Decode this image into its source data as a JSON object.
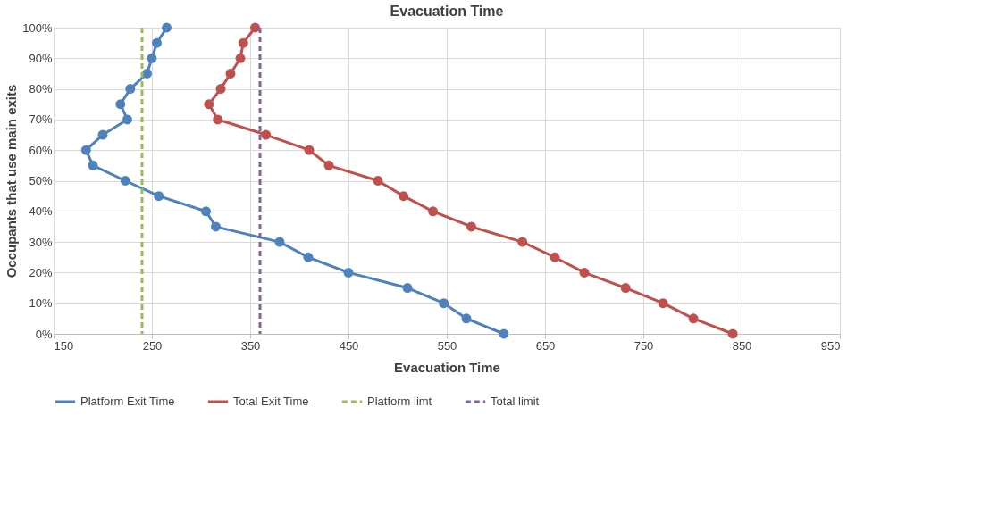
{
  "chart_data": {
    "type": "line",
    "title": "Evacuation Time",
    "xlabel": "Evacuation Time",
    "ylabel": "Occupants that use main exits",
    "series": [
      {
        "name": "Platform Exit Time",
        "color": "#4f81bd",
        "x": [
          608,
          570,
          547,
          510,
          450,
          409,
          380,
          315,
          305,
          257,
          223,
          190,
          183,
          200,
          225,
          218,
          228,
          245,
          250,
          255,
          265
        ],
        "values": [
          0,
          5,
          10,
          15,
          20,
          25,
          30,
          35,
          40,
          45,
          50,
          55,
          60,
          65,
          70,
          75,
          80,
          85,
          90,
          95,
          100
        ]
      },
      {
        "name": "Total Exit Time",
        "color": "#c0504d",
        "x": [
          841,
          801,
          770,
          732,
          690,
          660,
          627,
          575,
          536,
          506,
          480,
          430,
          410,
          366,
          317,
          308,
          320,
          330,
          340,
          343,
          355
        ],
        "values": [
          0,
          5,
          10,
          15,
          20,
          25,
          30,
          35,
          40,
          45,
          50,
          55,
          60,
          65,
          70,
          75,
          80,
          85,
          90,
          95,
          100
        ]
      }
    ],
    "ref_lines": [
      {
        "axis": "x",
        "value": 240,
        "label": "Platform limt",
        "color": "#9bbb59",
        "line_style": "dashed"
      },
      {
        "axis": "x",
        "value": 360,
        "label": "Total limit",
        "color": "#8064a2",
        "line_style": "dashed"
      }
    ],
    "xlim": [
      150,
      950
    ],
    "xticks": [
      150,
      250,
      350,
      450,
      550,
      650,
      750,
      850,
      950
    ],
    "ylim": [
      0,
      100
    ],
    "yticks": [
      {
        "value": 0,
        "label": "0%"
      },
      {
        "value": 10,
        "label": "10%"
      },
      {
        "value": 20,
        "label": "20%"
      },
      {
        "value": 30,
        "label": "30%"
      },
      {
        "value": 40,
        "label": "40%"
      },
      {
        "value": 50,
        "label": "50%"
      },
      {
        "value": 60,
        "label": "60%"
      },
      {
        "value": 70,
        "label": "70%"
      },
      {
        "value": 80,
        "label": "80%"
      },
      {
        "value": 90,
        "label": "90%"
      },
      {
        "value": 100,
        "label": "100%"
      }
    ],
    "grid": true,
    "legend": "bottom",
    "marker": "circle",
    "line_style": "solid"
  }
}
